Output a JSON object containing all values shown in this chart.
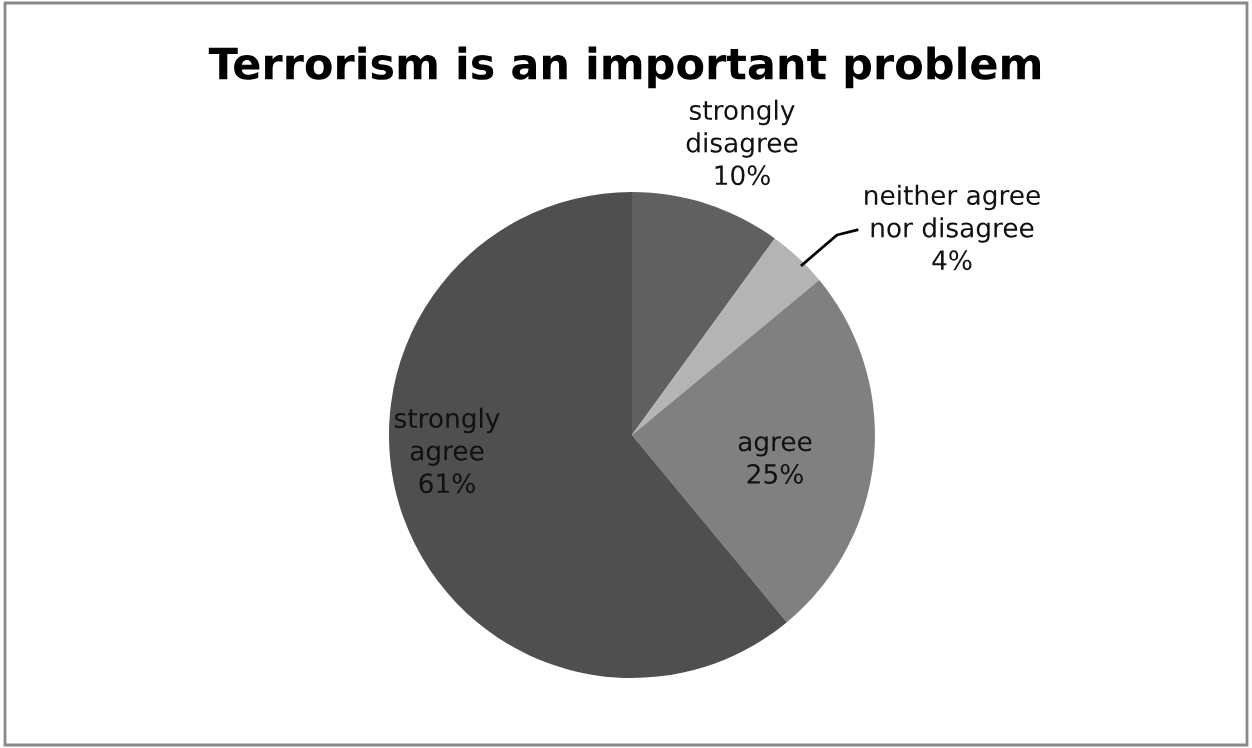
{
  "chart_data": {
    "type": "pie",
    "title": "Terrorism is an important problem",
    "categories": [
      "strongly disagree",
      "neither agree nor disagree",
      "agree",
      "strongly agree"
    ],
    "values": [
      10,
      4,
      25,
      61
    ],
    "value_labels": [
      "10%",
      "4%",
      "25%",
      "61%"
    ],
    "colors": [
      "#606060",
      "#b4b4b4",
      "#808080",
      "#4f4f4f"
    ],
    "legend": false
  }
}
